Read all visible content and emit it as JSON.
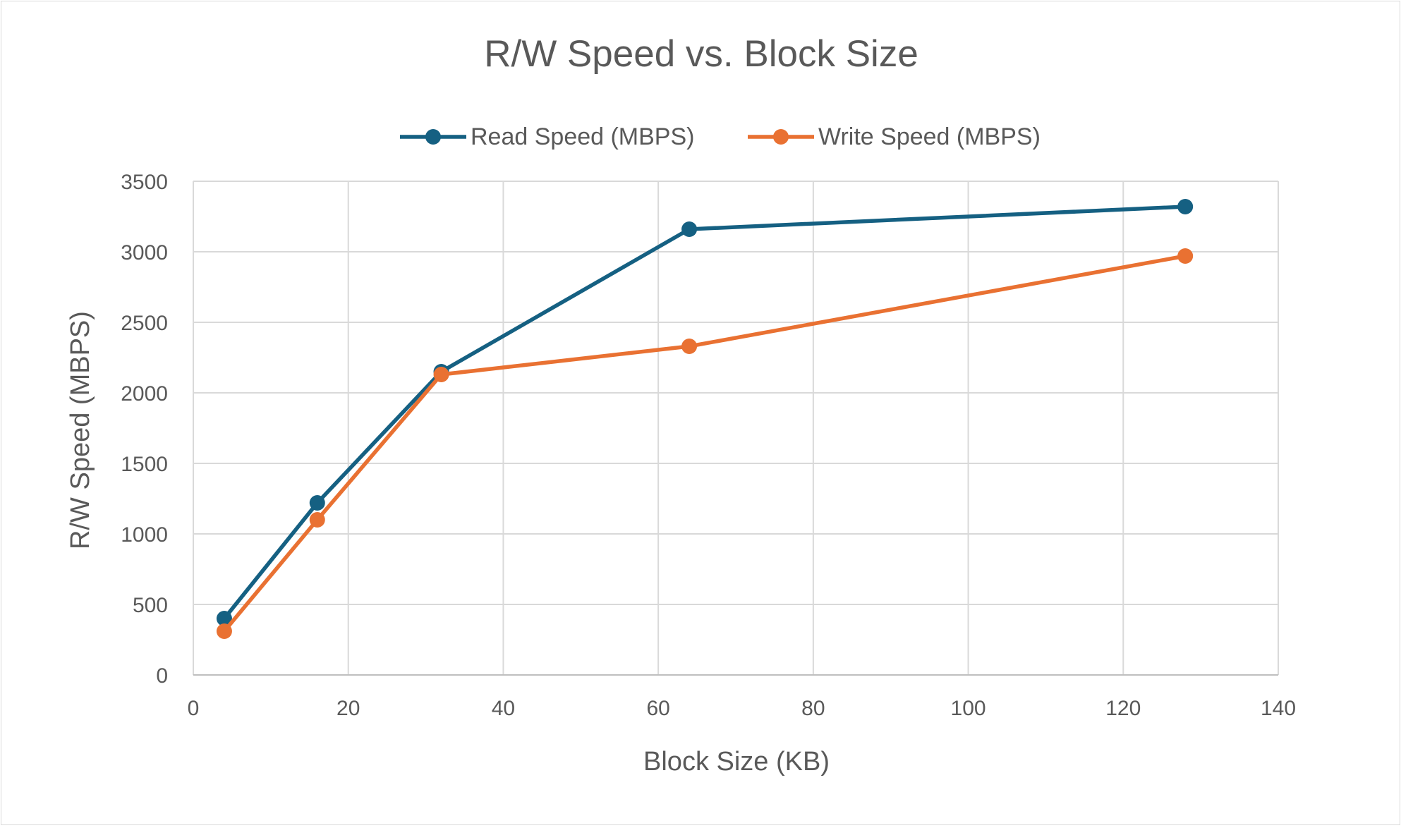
{
  "chart_data": {
    "type": "line",
    "title": "R/W Speed vs. Block Size",
    "xlabel": "Block Size (KB)",
    "ylabel": "R/W Speed (MBPS)",
    "xlim": [
      0,
      140
    ],
    "ylim": [
      0,
      3500
    ],
    "xticks": [
      0,
      20,
      40,
      60,
      80,
      100,
      120,
      140
    ],
    "yticks": [
      0,
      500,
      1000,
      1500,
      2000,
      2500,
      3000,
      3500
    ],
    "grid": true,
    "legend_position": "top",
    "x": [
      4,
      16,
      32,
      64,
      128
    ],
    "series": [
      {
        "name": "Read Speed (MBPS)",
        "color": "#156082",
        "values": [
          400,
          1220,
          2150,
          3160,
          3320
        ]
      },
      {
        "name": "Write Speed (MBPS)",
        "color": "#E97132",
        "values": [
          310,
          1100,
          2130,
          2330,
          2970
        ]
      }
    ]
  }
}
